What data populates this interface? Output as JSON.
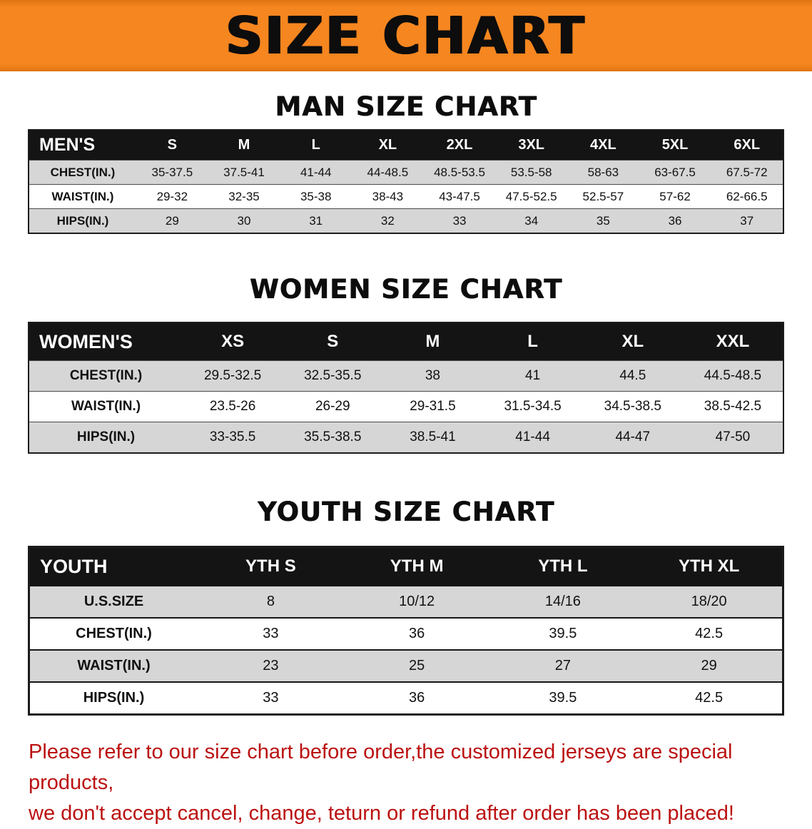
{
  "banner": {
    "title": "SIZE CHART"
  },
  "sections": [
    {
      "heading": "MAN SIZE CHART",
      "label": "MEN'S",
      "columns": [
        "S",
        "M",
        "L",
        "XL",
        "2XL",
        "3XL",
        "4XL",
        "5XL",
        "6XL"
      ],
      "rows": [
        {
          "label": "CHEST(IN.)",
          "values": [
            "35-37.5",
            "37.5-41",
            "41-44",
            "44-48.5",
            "48.5-53.5",
            "53.5-58",
            "58-63",
            "63-67.5",
            "67.5-72"
          ]
        },
        {
          "label": "WAIST(IN.)",
          "values": [
            "29-32",
            "32-35",
            "35-38",
            "38-43",
            "43-47.5",
            "47.5-52.5",
            "52.5-57",
            "57-62",
            "62-66.5"
          ]
        },
        {
          "label": "HIPS(IN.)",
          "values": [
            "29",
            "30",
            "31",
            "32",
            "33",
            "34",
            "35",
            "36",
            "37"
          ]
        }
      ]
    },
    {
      "heading": "WOMEN SIZE CHART",
      "label": "WOMEN'S",
      "columns": [
        "XS",
        "S",
        "M",
        "L",
        "XL",
        "XXL"
      ],
      "rows": [
        {
          "label": "CHEST(IN.)",
          "values": [
            "29.5-32.5",
            "32.5-35.5",
            "38",
            "41",
            "44.5",
            "44.5-48.5"
          ]
        },
        {
          "label": "WAIST(IN.)",
          "values": [
            "23.5-26",
            "26-29",
            "29-31.5",
            "31.5-34.5",
            "34.5-38.5",
            "38.5-42.5"
          ]
        },
        {
          "label": "HIPS(IN.)",
          "values": [
            "33-35.5",
            "35.5-38.5",
            "38.5-41",
            "41-44",
            "44-47",
            "47-50"
          ]
        }
      ]
    },
    {
      "heading": "YOUTH SIZE CHART",
      "label": "YOUTH",
      "columns": [
        "YTH S",
        "YTH M",
        "YTH L",
        "YTH XL"
      ],
      "rows": [
        {
          "label": "U.S.SIZE",
          "values": [
            "8",
            "10/12",
            "14/16",
            "18/20"
          ]
        },
        {
          "label": "CHEST(IN.)",
          "values": [
            "33",
            "36",
            "39.5",
            "42.5"
          ]
        },
        {
          "label": "WAIST(IN.)",
          "values": [
            "23",
            "25",
            "27",
            "29"
          ]
        },
        {
          "label": "HIPS(IN.)",
          "values": [
            "33",
            "36",
            "39.5",
            "42.5"
          ]
        }
      ]
    }
  ],
  "disclaimer": {
    "line1": "Please refer to our size chart before order,the customized jerseys are special products,",
    "line2": "we don't accept cancel, change, teturn or refund after order has been placed!"
  },
  "colors": {
    "banner_bg": "#f6861f",
    "header_bg": "#141414",
    "row_alt_bg": "#d6d6d6",
    "disclaimer_red": "#bb1111"
  }
}
